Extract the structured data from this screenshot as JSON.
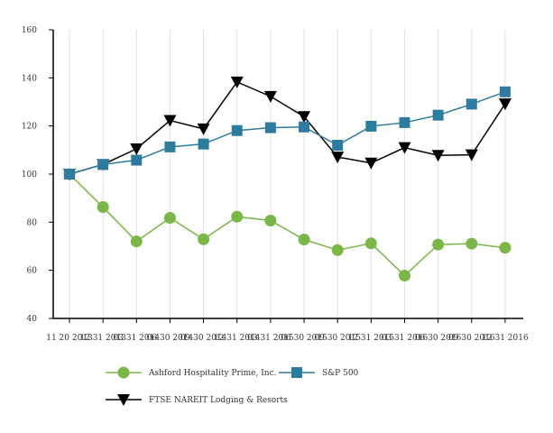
{
  "chart_data": {
    "type": "line",
    "title": "",
    "xlabel": "",
    "ylabel": "",
    "ylim": [
      40,
      160
    ],
    "yticks": [
      40,
      60,
      80,
      100,
      120,
      140,
      160
    ],
    "grid": "vertical",
    "legend_position": "bottom",
    "categories": [
      "11 20 2013",
      "12 31 2013",
      "03 31 2014",
      "06 30 2014",
      "09 30 2014",
      "12 31 2014",
      "03 31 2015",
      "06 30 2015",
      "09 30 2015",
      "12 31 2015",
      "03 31 2016",
      "06 30 2016",
      "09 30 2016",
      "12 31 2016"
    ],
    "series": [
      {
        "name": "Ashford Hospitality Prime, Inc.",
        "color": "#7ab648",
        "marker": "circle",
        "values": [
          100,
          86.3,
          72,
          81.8,
          72.9,
          82.3,
          80.7,
          72.8,
          68.4,
          71.2,
          57.8,
          70.7,
          71.1,
          69.4
        ]
      },
      {
        "name": "S&P 500",
        "color": "#2e7ba0",
        "marker": "square",
        "values": [
          100,
          104,
          105.8,
          111.3,
          112.5,
          118.1,
          119.3,
          119.6,
          112,
          119.9,
          121.4,
          124.5,
          129.1,
          134.2
        ]
      },
      {
        "name": "FTSE NAREIT Lodging & Resorts",
        "color": "#000000",
        "marker": "triangle-down",
        "values": [
          100,
          104,
          110.5,
          122.3,
          118.8,
          138.3,
          132.3,
          123.9,
          107.1,
          104.6,
          111,
          107.8,
          108,
          129.2
        ]
      }
    ]
  }
}
